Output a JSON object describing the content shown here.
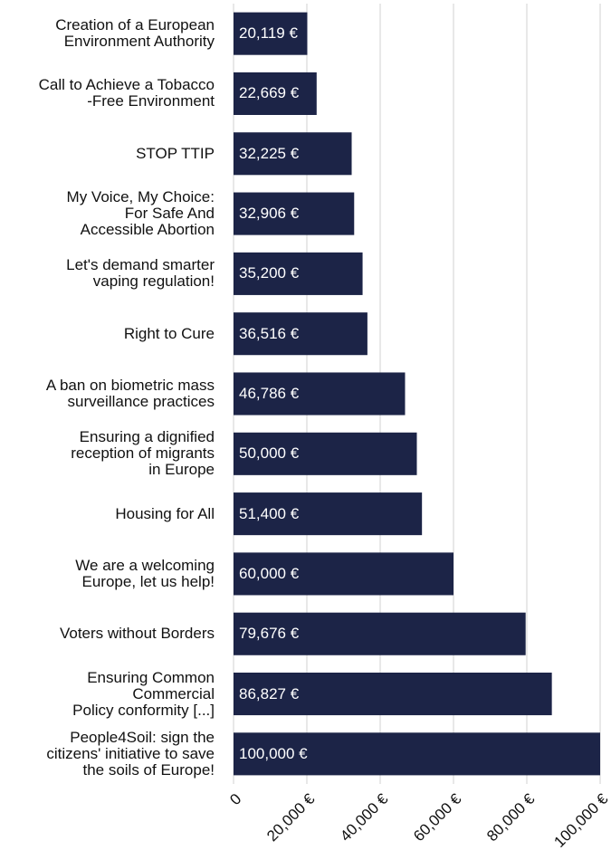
{
  "chart_data": {
    "type": "bar",
    "orientation": "horizontal",
    "color": "#1c2447",
    "grid": true,
    "categories": [
      "Creation of a European\nEnvironment Authority",
      "Call to Achieve a Tobacco\n-Free Environment",
      "STOP TTIP",
      "My Voice, My Choice:\nFor Safe And\nAccessible Abortion",
      "Let's demand smarter\nvaping regulation!",
      "Right to Cure",
      "A ban on biometric mass\nsurveillance practices",
      "Ensuring a dignified\nreception of migrants\nin Europe",
      "Housing for All",
      "We are a welcoming\nEurope, let us help!",
      "Voters without Borders",
      "Ensuring Common\nCommercial\nPolicy conformity [...]",
      "People4Soil: sign the\ncitizens' initiative to save\nthe soils of Europe!"
    ],
    "values": [
      20119,
      22669,
      32225,
      32906,
      35200,
      36516,
      46786,
      50000,
      51400,
      60000,
      79676,
      86827,
      100000
    ],
    "value_labels": [
      "20,119 €",
      "22,669 €",
      "32,225 €",
      "32,906 €",
      "35,200 €",
      "36,516 €",
      "46,786 €",
      "50,000 €",
      "51,400 €",
      "60,000 €",
      "79,676 €",
      "86,827 €",
      "100,000 €"
    ],
    "xlim": [
      0,
      100000
    ],
    "xticks": [
      0,
      {
        "value": 20000,
        "label": "20,000 €"
      },
      {
        "value": 40000,
        "label": "40,000 €"
      },
      {
        "value": 60000,
        "label": "60,000 €"
      },
      {
        "value": 80000,
        "label": "80,000 €"
      },
      {
        "value": 100000,
        "label": "100,000 €"
      }
    ]
  }
}
